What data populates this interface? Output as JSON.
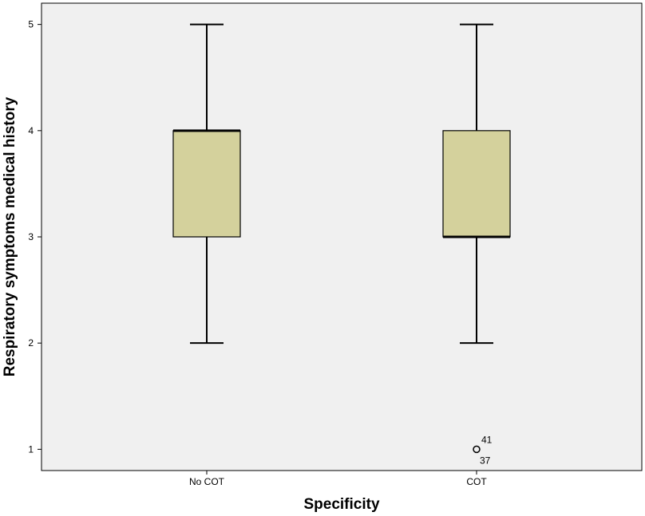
{
  "chart_data": {
    "type": "box",
    "xlabel": "Specificity",
    "ylabel": "Respiratory symptoms medical history",
    "categories": [
      "No COT",
      "COT"
    ],
    "boxes": [
      {
        "category": "No COT",
        "min": 2,
        "q1": 3,
        "median": 4,
        "q3": 4,
        "max": 5,
        "outliers": []
      },
      {
        "category": "COT",
        "min": 2,
        "q1": 3,
        "median": 3,
        "q3": 4,
        "max": 5,
        "outliers": [
          {
            "value": 1,
            "labels": [
              "41",
              "37"
            ]
          }
        ]
      }
    ],
    "ylim": [
      0.8,
      5.2
    ],
    "yticks": [
      "1",
      "2",
      "3",
      "4",
      "5"
    ],
    "grid": false,
    "colors": {
      "plot_background": "#f0f0f0",
      "box_fill": "#d4d19c",
      "stroke": "#000000"
    }
  }
}
